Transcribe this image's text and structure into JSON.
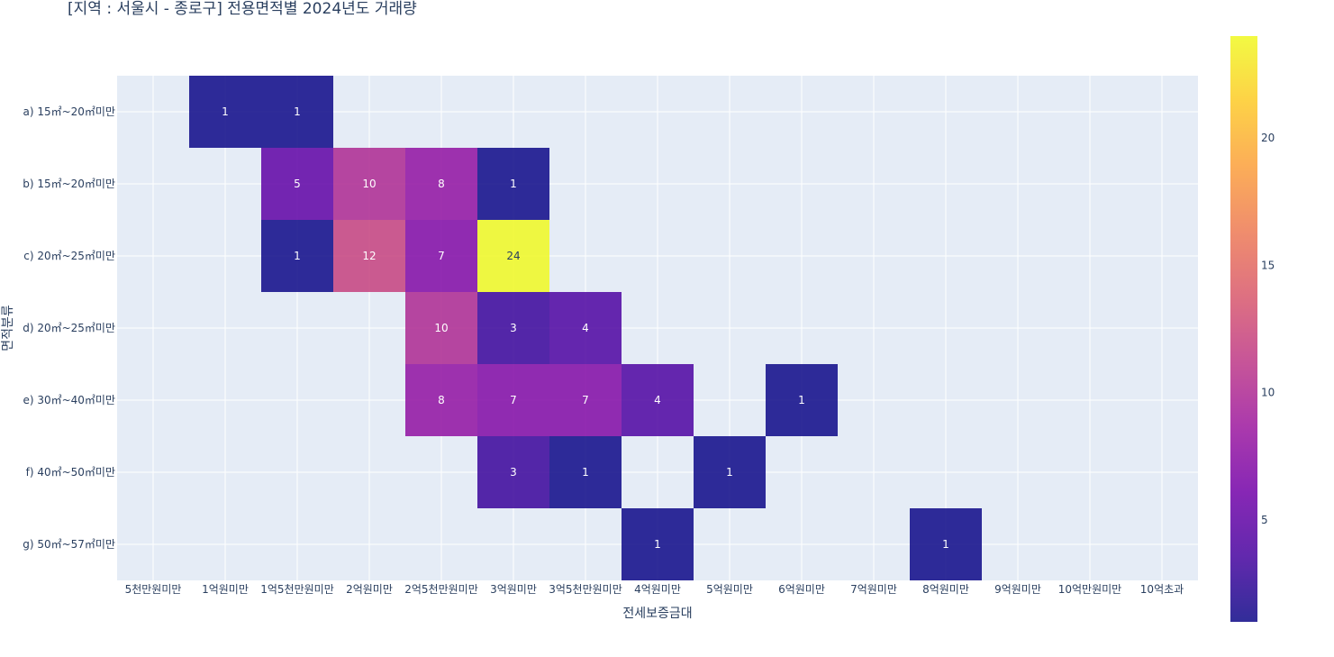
{
  "chart_data": {
    "type": "heatmap",
    "title": "[지역 : 서울시 - 종로구] 전용면적별 2024년도 거래량",
    "xlabel": "전세보증금대",
    "ylabel": "면적분류",
    "x_categories": [
      "5천만원미만",
      "1억원미만",
      "1억5천만원미만",
      "2억원미만",
      "2억5천만원미만",
      "3억원미만",
      "3억5천만원미만",
      "4억원미만",
      "5억원미만",
      "6억원미만",
      "7억원미만",
      "8억원미만",
      "9억원미만",
      "10억만원미만",
      "10억초과"
    ],
    "y_categories": [
      "a) 15㎡~20㎡미만",
      "b) 15㎡~20㎡미만",
      "c) 20㎡~25㎡미만",
      "d) 20㎡~25㎡미만",
      "e) 30㎡~40㎡미만",
      "f) 40㎡~50㎡미만",
      "g) 50㎡~57㎡미만"
    ],
    "values": [
      [
        null,
        1,
        1,
        null,
        null,
        null,
        null,
        null,
        null,
        null,
        null,
        null,
        null,
        null,
        null
      ],
      [
        null,
        null,
        5,
        10,
        8,
        1,
        null,
        null,
        null,
        null,
        null,
        null,
        null,
        null,
        null
      ],
      [
        null,
        null,
        1,
        12,
        7,
        24,
        null,
        null,
        null,
        null,
        null,
        null,
        null,
        null,
        null
      ],
      [
        null,
        null,
        null,
        null,
        10,
        3,
        4,
        null,
        null,
        null,
        null,
        null,
        null,
        null,
        null
      ],
      [
        null,
        null,
        null,
        null,
        8,
        7,
        7,
        4,
        null,
        1,
        null,
        null,
        null,
        null,
        null
      ],
      [
        null,
        null,
        null,
        null,
        null,
        3,
        1,
        null,
        1,
        null,
        null,
        null,
        null,
        null,
        null
      ],
      [
        null,
        null,
        null,
        null,
        null,
        null,
        null,
        1,
        null,
        null,
        null,
        1,
        null,
        null,
        null
      ]
    ],
    "zrange": [
      1,
      24
    ],
    "colorbar_ticks": [
      5,
      10,
      15,
      20
    ],
    "colorscale": [
      "#0d0887",
      "#46039f",
      "#7201a8",
      "#9c179e",
      "#bd3786",
      "#d8576b",
      "#ed7953",
      "#fb9f3a",
      "#fdca26",
      "#f0f921"
    ],
    "plot_bg": "#e5ecf6",
    "grid": true
  }
}
